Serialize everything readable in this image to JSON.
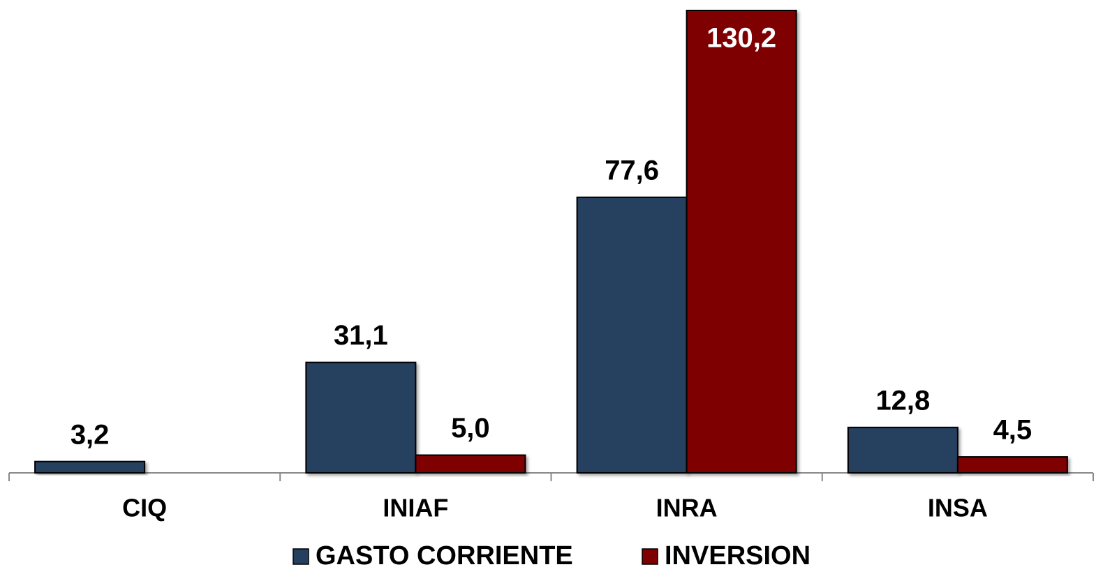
{
  "chart_data": {
    "type": "bar",
    "categories": [
      "CIQ",
      "INIAF",
      "INRA",
      "INSA"
    ],
    "series": [
      {
        "name": "GASTO CORRIENTE",
        "color": "#253f60",
        "values": [
          3.2,
          31.1,
          77.6,
          12.8
        ],
        "value_labels": [
          "3,2",
          "31,1",
          "77,6",
          "12,8"
        ]
      },
      {
        "name": "INVERSION",
        "color": "#7f0000",
        "values": [
          null,
          5.0,
          130.2,
          4.5
        ],
        "value_labels": [
          null,
          "5,0",
          "130,2",
          "4,5"
        ]
      }
    ],
    "ylim": [
      0,
      130.2
    ]
  }
}
